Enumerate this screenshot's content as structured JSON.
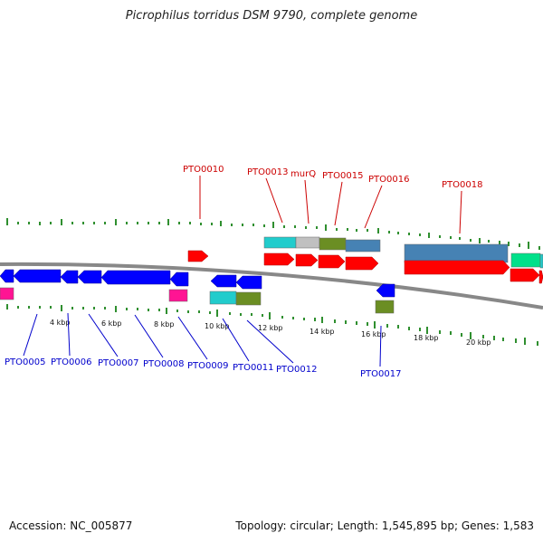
{
  "title": "Picrophilus torridus DSM 9790, complete genome",
  "footer": {
    "accession": "Accession: NC_005877",
    "topology": "Topology: circular; Length: 1,545,895 bp; Genes: 1,583"
  },
  "colors": {
    "forward_gene": "#ff0000",
    "reverse_gene": "#0000ff",
    "tick": "#2f8f2f",
    "backbone": "#888888",
    "cog_cyan": "#22cccc",
    "cog_gray": "#c0c0c0",
    "cog_olive": "#6b8e23",
    "cog_steelblue": "#4682b4",
    "cog_magenta": "#ff1493",
    "cog_spring": "#00e08a"
  },
  "scale_labels": [
    "4 kbp",
    "6 kbp",
    "8 kbp",
    "10 kbp",
    "12 kbp",
    "14 kbp",
    "16 kbp",
    "18 kbp",
    "20 kbp"
  ],
  "forward_labels": [
    "PTO0010",
    "PTO0013",
    "murQ",
    "PTO0015",
    "PTO0016",
    "PTO0018"
  ],
  "reverse_labels": [
    "PTO0005",
    "PTO0006",
    "PTO0007",
    "PTO0008",
    "PTO0009",
    "PTO0011",
    "PTO0012",
    "PTO0017"
  ]
}
